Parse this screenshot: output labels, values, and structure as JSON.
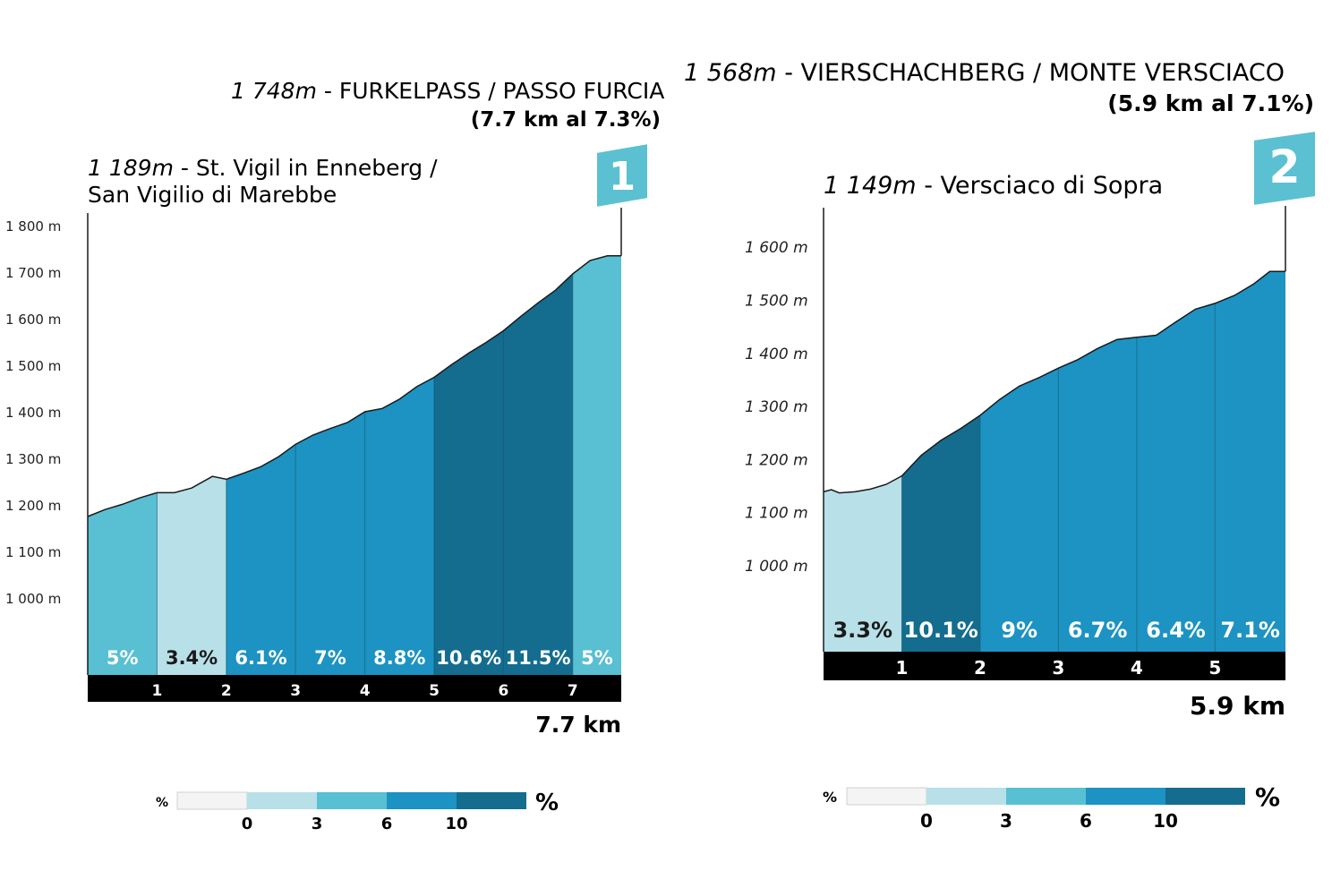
{
  "colors": {
    "grade_0": "#f4f4f4",
    "grade_3": "#b8e0e8",
    "grade_6": "#59bfd2",
    "grade_10": "#1c93c2",
    "grade_max": "#146d8e",
    "badge": "#5bc0d2",
    "km_bar": "#000000",
    "outline": "#1a1a1a"
  },
  "chart_data": [
    {
      "type": "area",
      "summit": {
        "alt": "1 748m",
        "name": "- FURKELPASS / PASSO FURCIA",
        "stats": "(7.7 km al 7.3%)"
      },
      "start": {
        "alt": "1 189m",
        "name_line1": "- St. Vigil in Enneberg /",
        "name_line2": "San Vigilio di Marebbe"
      },
      "badge": "1",
      "total_distance": 7.7,
      "total_label": "7.7 km",
      "ylim": [
        900,
        1800
      ],
      "yticks": [
        1000,
        1100,
        1200,
        1300,
        1400,
        1500,
        1600,
        1700,
        1800
      ],
      "ytick_labels": [
        "1 000 m",
        "1 100 m",
        "1 200 m",
        "1 300 m",
        "1 400 m",
        "1 500 m",
        "1 600 m",
        "1 700 m",
        "1 800 m"
      ],
      "km_ticks": [
        "1",
        "2",
        "3",
        "4",
        "5",
        "6",
        "7"
      ],
      "profile": [
        [
          0,
          1177
        ],
        [
          0.25,
          1192
        ],
        [
          0.5,
          1203
        ],
        [
          0.75,
          1217
        ],
        [
          1.0,
          1228
        ],
        [
          1.25,
          1228
        ],
        [
          1.5,
          1238
        ],
        [
          1.8,
          1263
        ],
        [
          2.0,
          1257
        ],
        [
          2.25,
          1270
        ],
        [
          2.5,
          1284
        ],
        [
          2.75,
          1305
        ],
        [
          3.0,
          1332
        ],
        [
          3.25,
          1352
        ],
        [
          3.5,
          1366
        ],
        [
          3.75,
          1379
        ],
        [
          4.0,
          1402
        ],
        [
          4.25,
          1409
        ],
        [
          4.5,
          1429
        ],
        [
          4.75,
          1456
        ],
        [
          5.0,
          1476
        ],
        [
          5.25,
          1503
        ],
        [
          5.5,
          1528
        ],
        [
          5.75,
          1551
        ],
        [
          6.0,
          1576
        ],
        [
          6.25,
          1607
        ],
        [
          6.5,
          1636
        ],
        [
          6.75,
          1663
        ],
        [
          7.0,
          1698
        ],
        [
          7.25,
          1727
        ],
        [
          7.5,
          1737
        ],
        [
          7.7,
          1737
        ]
      ],
      "segments": [
        {
          "from": 0,
          "to": 1,
          "grade": "5%",
          "level": "grade_6"
        },
        {
          "from": 1,
          "to": 2,
          "grade": "3.4%",
          "level": "grade_3"
        },
        {
          "from": 2,
          "to": 3,
          "grade": "6.1%",
          "level": "grade_10"
        },
        {
          "from": 3,
          "to": 4,
          "grade": "7%",
          "level": "grade_10"
        },
        {
          "from": 4,
          "to": 5,
          "grade": "8.8%",
          "level": "grade_10"
        },
        {
          "from": 5,
          "to": 6,
          "grade": "10.6%",
          "level": "grade_max"
        },
        {
          "from": 6,
          "to": 7,
          "grade": "11.5%",
          "level": "grade_max"
        },
        {
          "from": 7,
          "to": 7.7,
          "grade": "5%",
          "level": "grade_6"
        }
      ]
    },
    {
      "type": "area",
      "summit": {
        "alt": "1 568m",
        "name": "- VIERSCHACHBERG / MONTE VERSCIACO",
        "stats": "(5.9 km al 7.1%)"
      },
      "start": {
        "alt": "1 149m",
        "name_line1": "- Versciaco di Sopra",
        "name_line2": ""
      },
      "badge": "2",
      "total_distance": 5.9,
      "total_label": "5.9 km",
      "ylim": [
        900,
        1700
      ],
      "yticks": [
        1000,
        1100,
        1200,
        1300,
        1400,
        1500,
        1600
      ],
      "ytick_labels": [
        "1 000 m",
        "1 100 m",
        "1 200 m",
        "1 300 m",
        "1 400 m",
        "1 500 m",
        "1 600 m"
      ],
      "km_ticks": [
        "1",
        "2",
        "3",
        "4",
        "5"
      ],
      "profile": [
        [
          0,
          1141
        ],
        [
          0.1,
          1145
        ],
        [
          0.2,
          1139
        ],
        [
          0.4,
          1141
        ],
        [
          0.6,
          1146
        ],
        [
          0.8,
          1155
        ],
        [
          1.0,
          1171
        ],
        [
          1.25,
          1210
        ],
        [
          1.5,
          1238
        ],
        [
          1.75,
          1260
        ],
        [
          2.0,
          1285
        ],
        [
          2.25,
          1315
        ],
        [
          2.5,
          1340
        ],
        [
          2.75,
          1356
        ],
        [
          3.0,
          1374
        ],
        [
          3.25,
          1390
        ],
        [
          3.5,
          1411
        ],
        [
          3.75,
          1428
        ],
        [
          4.0,
          1432
        ],
        [
          4.25,
          1436
        ],
        [
          4.5,
          1461
        ],
        [
          4.75,
          1485
        ],
        [
          5.0,
          1496
        ],
        [
          5.25,
          1511
        ],
        [
          5.5,
          1533
        ],
        [
          5.7,
          1556
        ],
        [
          5.9,
          1556
        ]
      ],
      "segments": [
        {
          "from": 0,
          "to": 1,
          "grade": "3.3%",
          "level": "grade_3"
        },
        {
          "from": 1,
          "to": 2,
          "grade": "10.1%",
          "level": "grade_max"
        },
        {
          "from": 2,
          "to": 3,
          "grade": "9%",
          "level": "grade_10"
        },
        {
          "from": 3,
          "to": 4,
          "grade": "6.7%",
          "level": "grade_10"
        },
        {
          "from": 4,
          "to": 5,
          "grade": "6.4%",
          "level": "grade_10"
        },
        {
          "from": 5,
          "to": 5.9,
          "grade": "7.1%",
          "level": "grade_10"
        }
      ]
    }
  ],
  "legends": [
    {
      "percent_left": "%",
      "percent_right": "%",
      "ticks": [
        "0",
        "3",
        "6",
        "10"
      ]
    },
    {
      "percent_left": "%",
      "percent_right": "%",
      "ticks": [
        "0",
        "3",
        "6",
        "10"
      ]
    }
  ]
}
